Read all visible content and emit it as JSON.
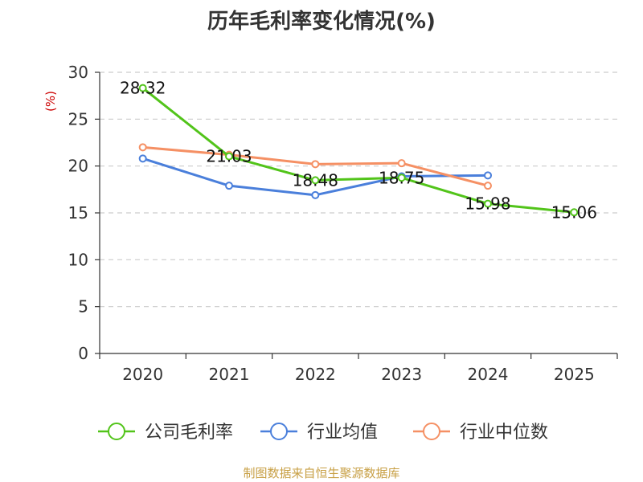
{
  "title": "历年毛利率变化情况(%)",
  "source": "制图数据来自恒生聚源数据库",
  "chart_data": {
    "type": "line",
    "title": "历年毛利率变化情况(%)",
    "ylabel": "(%)",
    "xlabel": "",
    "categories": [
      "2020",
      "2021",
      "2022",
      "2023",
      "2024",
      "2025"
    ],
    "ylim": [
      0,
      30
    ],
    "yticks": [
      0,
      5,
      10,
      15,
      20,
      25,
      30
    ],
    "grid": true,
    "legend_position": "bottom",
    "series": [
      {
        "name": "公司毛利率",
        "color": "#52c41a",
        "show_labels": true,
        "values": [
          28.32,
          21.03,
          18.48,
          18.75,
          15.98,
          15.06
        ],
        "labels": [
          "28.32",
          "21.03",
          "18.48",
          "18.75",
          "15.98",
          "15.06"
        ]
      },
      {
        "name": "行业均值",
        "color": "#4a7fdb",
        "show_labels": false,
        "values": [
          20.8,
          17.9,
          16.9,
          18.9,
          19.0,
          null
        ]
      },
      {
        "name": "行业中位数",
        "color": "#f59064",
        "show_labels": false,
        "values": [
          22.0,
          21.2,
          20.2,
          20.3,
          17.9,
          null
        ]
      }
    ]
  }
}
